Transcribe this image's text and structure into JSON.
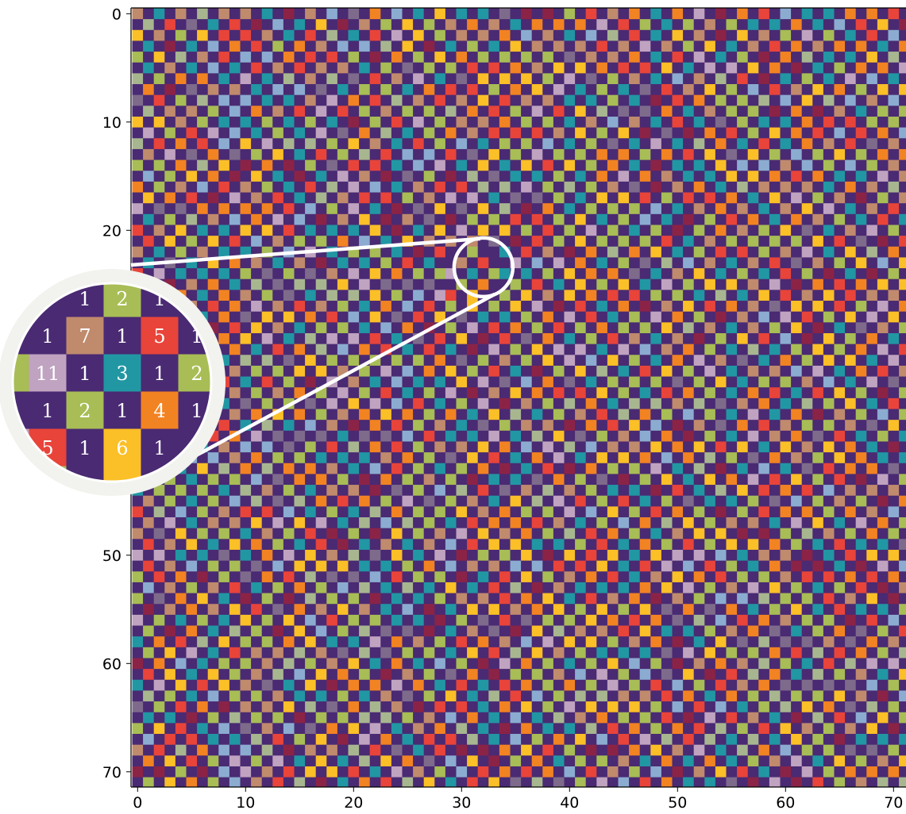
{
  "chart_data": {
    "type": "heatmap",
    "title": "",
    "xlabel": "",
    "ylabel": "",
    "xlim": [
      0,
      71
    ],
    "ylim": [
      71,
      0
    ],
    "grid": false,
    "legend": "none",
    "xticks": [
      0,
      10,
      20,
      30,
      40,
      50,
      60,
      70
    ],
    "yticks": [
      0,
      10,
      20,
      30,
      40,
      50,
      60,
      70
    ],
    "xtick_labels": [
      "0",
      "10",
      "20",
      "30",
      "40",
      "50",
      "60",
      "70"
    ],
    "ytick_labels": [
      "0",
      "10",
      "20",
      "30",
      "40",
      "50",
      "60",
      "70"
    ],
    "rows": 72,
    "cols": 72,
    "value_colors": {
      "1": "#4a2a73",
      "2": "#a8bd55",
      "3": "#2197a3",
      "4": "#f28322",
      "5": "#e8443a",
      "6": "#fbbf27",
      "7": "#c08a6d",
      "8": "#7e6b8c",
      "9": "#8bacd0",
      "10": "#8b2346",
      "11": "#c0a3c0",
      "12": "#a8b690"
    },
    "zoom_inset": {
      "center": [
        31,
        24
      ],
      "labels": [
        {
          "row": 22,
          "col": 30,
          "value": "1"
        },
        {
          "row": 22,
          "col": 31,
          "value": "2"
        },
        {
          "row": 22,
          "col": 32,
          "value": "1"
        },
        {
          "row": 23,
          "col": 29,
          "value": "1"
        },
        {
          "row": 23,
          "col": 30,
          "value": "7"
        },
        {
          "row": 23,
          "col": 31,
          "value": "1"
        },
        {
          "row": 23,
          "col": 32,
          "value": "5"
        },
        {
          "row": 23,
          "col": 33,
          "value": "1"
        },
        {
          "row": 24,
          "col": 29,
          "value": "11"
        },
        {
          "row": 24,
          "col": 30,
          "value": "1"
        },
        {
          "row": 24,
          "col": 31,
          "value": "3"
        },
        {
          "row": 24,
          "col": 32,
          "value": "1"
        },
        {
          "row": 24,
          "col": 33,
          "value": "2"
        },
        {
          "row": 25,
          "col": 29,
          "value": "1"
        },
        {
          "row": 25,
          "col": 30,
          "value": "2"
        },
        {
          "row": 25,
          "col": 31,
          "value": "1"
        },
        {
          "row": 25,
          "col": 32,
          "value": "4"
        },
        {
          "row": 25,
          "col": 33,
          "value": "1"
        },
        {
          "row": 26,
          "col": 29,
          "value": "5"
        },
        {
          "row": 26,
          "col": 30,
          "value": "1"
        },
        {
          "row": 26,
          "col": 31,
          "value": "6"
        },
        {
          "row": 26,
          "col": 32,
          "value": "1"
        }
      ]
    }
  }
}
